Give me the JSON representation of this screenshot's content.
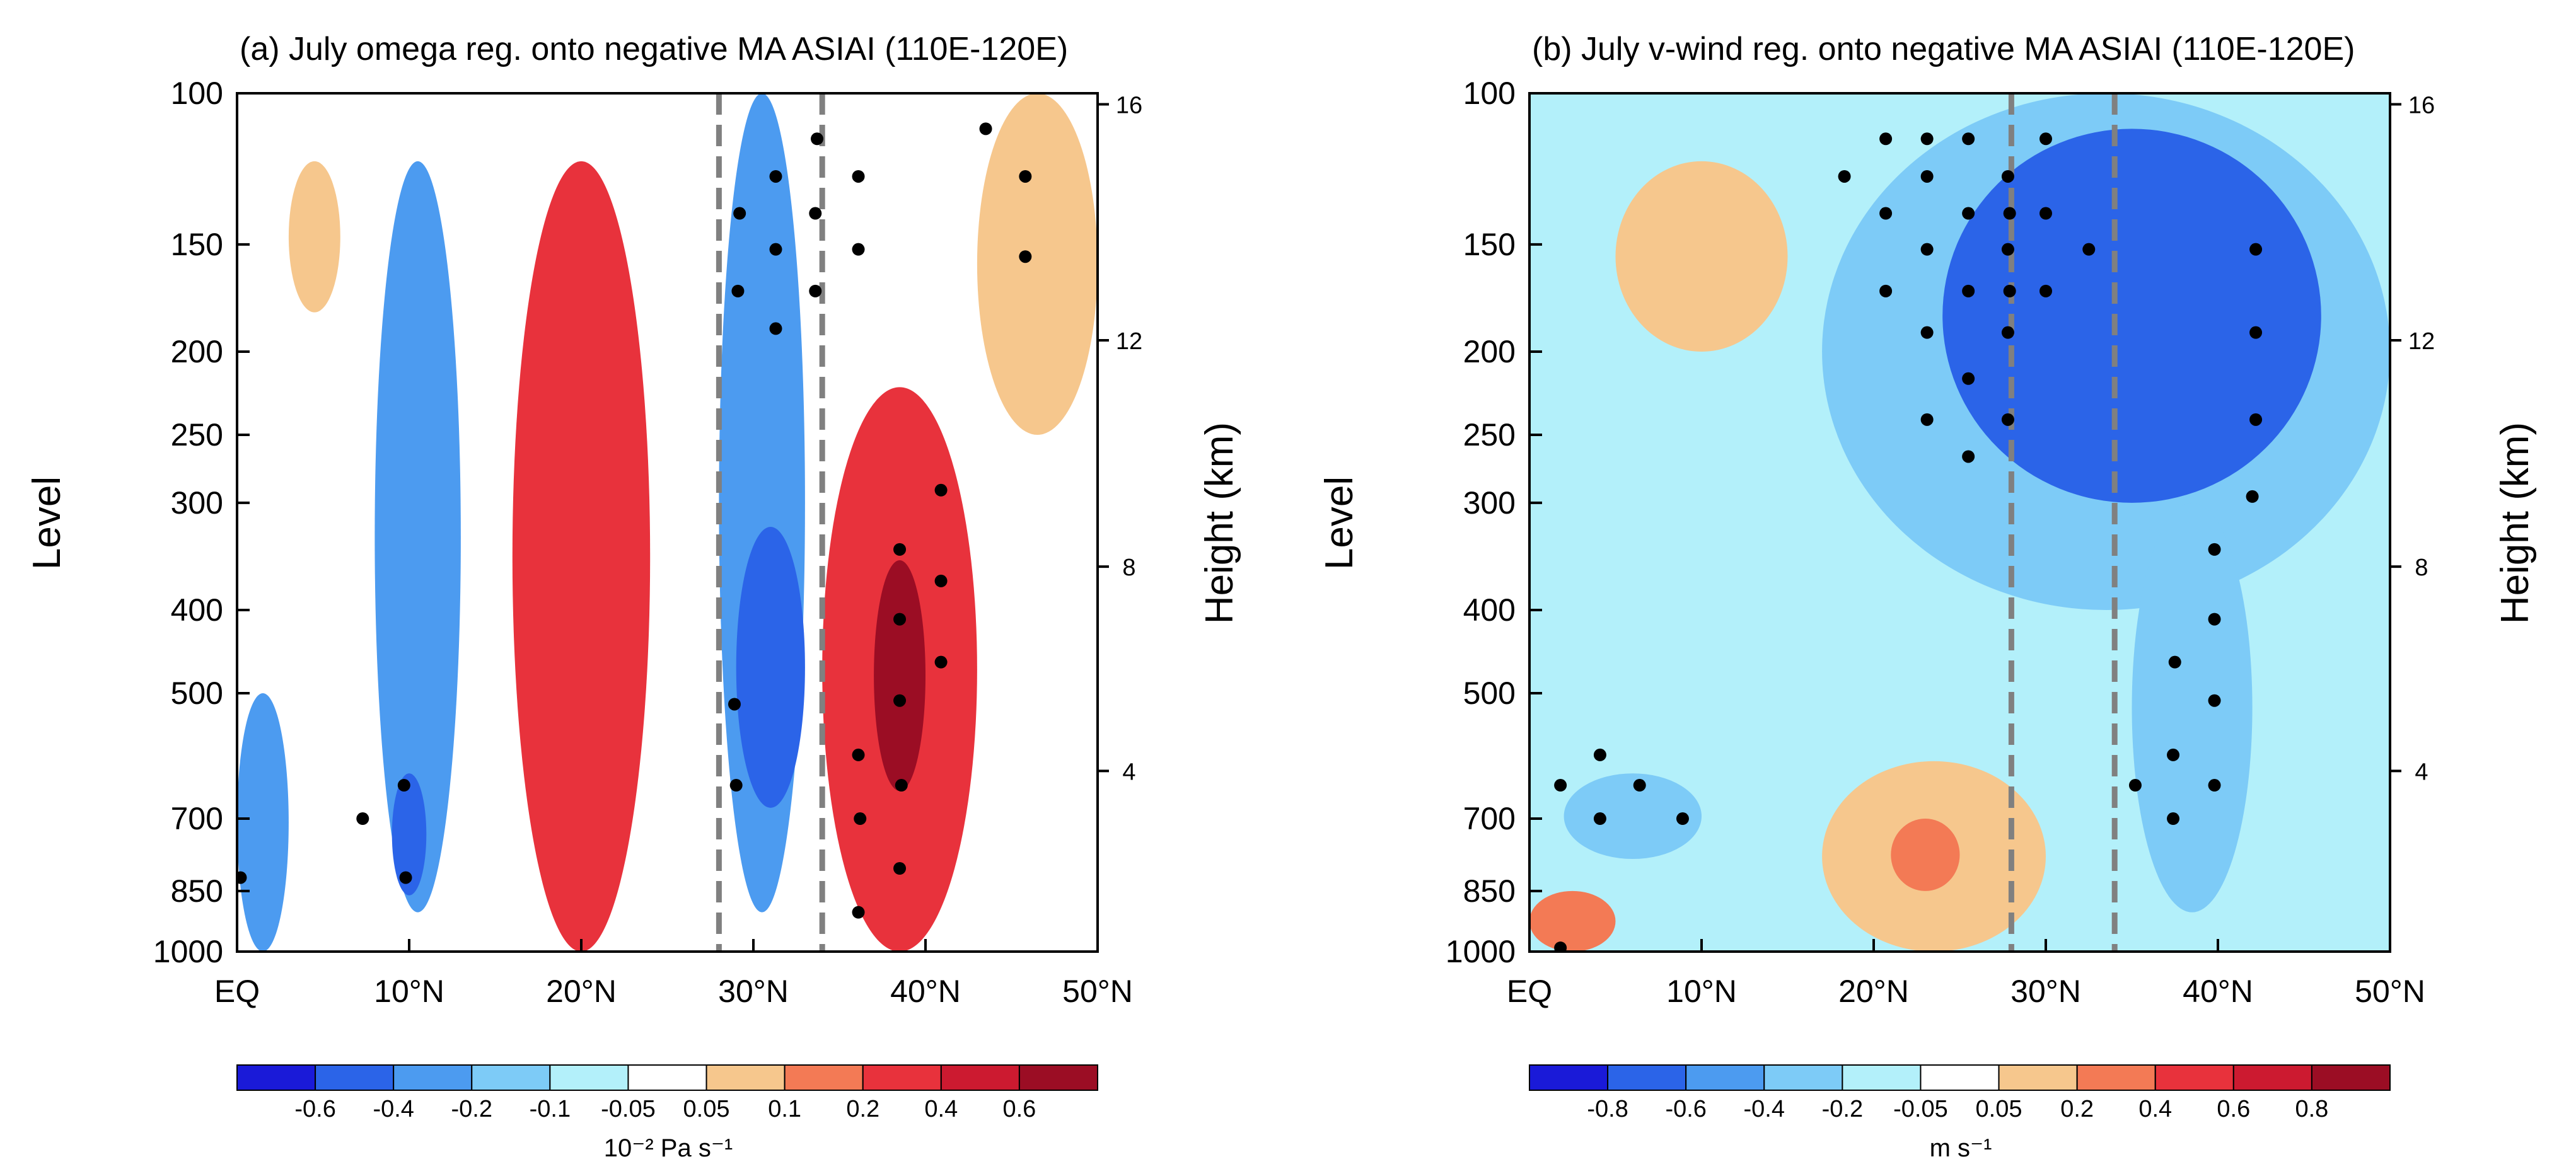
{
  "chart_data": [
    {
      "type": "heatmap",
      "panel": "a",
      "title": "(a) July omega reg. onto negative MA ASIAI (110E-120E)",
      "xlabel": "",
      "ylabel": "Level",
      "ylabel_right": "Height (km)",
      "x_ticks": [
        "EQ",
        "10°N",
        "20°N",
        "30°N",
        "40°N",
        "50°N"
      ],
      "x_range": [
        0,
        50
      ],
      "y_ticks": [
        "100",
        "150",
        "200",
        "250",
        "300",
        "400",
        "500",
        "700",
        "850",
        "1000"
      ],
      "y_levels": [
        100,
        150,
        200,
        250,
        300,
        400,
        500,
        700,
        850,
        1000
      ],
      "y_range": [
        100,
        1000
      ],
      "y_right_ticks": [
        "4",
        "8",
        "12",
        "16"
      ],
      "y_right_levels": [
        616,
        356,
        194,
        103
      ],
      "reference_lines_lat": [
        28,
        34
      ],
      "colorbar": {
        "levels": [
          "-0.6",
          "-0.4",
          "-0.2",
          "-0.1",
          "-0.05",
          "0.05",
          "0.1",
          "0.2",
          "0.4",
          "0.6"
        ],
        "colors": [
          "#1a1ad8",
          "#2b64e8",
          "#4c9bf0",
          "#7dcbf7",
          "#b3f0fa",
          "#ffffff",
          "#f6c78d",
          "#f37a55",
          "#e8323c",
          "#cc1a30",
          "#9b0d24"
        ],
        "unit": "10⁻² Pa s⁻¹"
      },
      "features": [
        {
          "lat": [
            0,
            3
          ],
          "p": [
            500,
            1000
          ],
          "value": -0.3
        },
        {
          "lat": [
            3,
            6
          ],
          "p": [
            120,
            180
          ],
          "value": 0.1
        },
        {
          "lat": [
            8,
            13
          ],
          "p": [
            120,
            900
          ],
          "value": -0.3
        },
        {
          "lat": [
            9,
            11
          ],
          "p": [
            620,
            860
          ],
          "value": -0.5
        },
        {
          "lat": [
            16,
            24
          ],
          "p": [
            120,
            1000
          ],
          "value": 0.3
        },
        {
          "lat": [
            28,
            33
          ],
          "p": [
            100,
            900
          ],
          "value": -0.2
        },
        {
          "lat": [
            29,
            33
          ],
          "p": [
            320,
            680
          ],
          "value": -0.5
        },
        {
          "lat": [
            34,
            43
          ],
          "p": [
            220,
            1000
          ],
          "value": 0.4
        },
        {
          "lat": [
            37,
            40
          ],
          "p": [
            350,
            650
          ],
          "value": 0.7
        },
        {
          "lat": [
            43,
            50
          ],
          "p": [
            100,
            250
          ],
          "value": 0.1
        }
      ],
      "significance_points": [
        {
          "lat": 0.2,
          "p": 820
        },
        {
          "lat": 7.3,
          "p": 700
        },
        {
          "lat": 9.7,
          "p": 640
        },
        {
          "lat": 9.8,
          "p": 820
        },
        {
          "lat": 28.9,
          "p": 515
        },
        {
          "lat": 29.0,
          "p": 640
        },
        {
          "lat": 29.2,
          "p": 138
        },
        {
          "lat": 29.1,
          "p": 170
        },
        {
          "lat": 31.3,
          "p": 125
        },
        {
          "lat": 31.3,
          "p": 152
        },
        {
          "lat": 31.3,
          "p": 188
        },
        {
          "lat": 33.7,
          "p": 113
        },
        {
          "lat": 33.6,
          "p": 138
        },
        {
          "lat": 33.6,
          "p": 170
        },
        {
          "lat": 36.1,
          "p": 125
        },
        {
          "lat": 36.1,
          "p": 152
        },
        {
          "lat": 36.1,
          "p": 590
        },
        {
          "lat": 36.2,
          "p": 700
        },
        {
          "lat": 36.1,
          "p": 900
        },
        {
          "lat": 38.5,
          "p": 340
        },
        {
          "lat": 38.5,
          "p": 410
        },
        {
          "lat": 38.5,
          "p": 510
        },
        {
          "lat": 38.6,
          "p": 640
        },
        {
          "lat": 38.5,
          "p": 800
        },
        {
          "lat": 40.9,
          "p": 290
        },
        {
          "lat": 40.9,
          "p": 370
        },
        {
          "lat": 40.9,
          "p": 460
        },
        {
          "lat": 43.5,
          "p": 110
        },
        {
          "lat": 45.8,
          "p": 125
        },
        {
          "lat": 45.8,
          "p": 155
        }
      ]
    },
    {
      "type": "heatmap",
      "panel": "b",
      "title": "(b) July v-wind reg. onto negative MA ASIAI (110E-120E)",
      "xlabel": "",
      "ylabel": "Level",
      "ylabel_right": "Height (km)",
      "x_ticks": [
        "EQ",
        "10°N",
        "20°N",
        "30°N",
        "40°N",
        "50°N"
      ],
      "x_range": [
        0,
        50
      ],
      "y_ticks": [
        "100",
        "150",
        "200",
        "250",
        "300",
        "400",
        "500",
        "700",
        "850",
        "1000"
      ],
      "y_levels": [
        100,
        150,
        200,
        250,
        300,
        400,
        500,
        700,
        850,
        1000
      ],
      "y_range": [
        100,
        1000
      ],
      "y_right_ticks": [
        "4",
        "8",
        "12",
        "16"
      ],
      "y_right_levels": [
        616,
        356,
        194,
        103
      ],
      "reference_lines_lat": [
        28,
        34
      ],
      "colorbar": {
        "levels": [
          "-0.8",
          "-0.6",
          "-0.4",
          "-0.2",
          "-0.05",
          "0.05",
          "0.2",
          "0.4",
          "0.6",
          "0.8"
        ],
        "colors": [
          "#1a1ad8",
          "#2b64e8",
          "#4c9bf0",
          "#7dcbf7",
          "#b3f0fa",
          "#ffffff",
          "#f6c78d",
          "#f37a55",
          "#e8323c",
          "#cc1a30",
          "#9b0d24"
        ],
        "unit": "m s⁻¹"
      },
      "features": [
        {
          "lat": [
            5,
            15
          ],
          "p": [
            120,
            200
          ],
          "value": 0.1
        },
        {
          "lat": [
            17,
            30
          ],
          "p": [
            600,
            1000
          ],
          "value": 0.1
        },
        {
          "lat": [
            21,
            25
          ],
          "p": [
            700,
            850
          ],
          "value": 0.3
        },
        {
          "lat": [
            0,
            5
          ],
          "p": [
            850,
            1000
          ],
          "value": 0.3
        },
        {
          "lat": [
            17,
            50
          ],
          "p": [
            100,
            400
          ],
          "value": -0.3
        },
        {
          "lat": [
            24,
            46
          ],
          "p": [
            110,
            300
          ],
          "value": -0.7
        },
        {
          "lat": [
            35,
            42
          ],
          "p": [
            300,
            900
          ],
          "value": -0.3
        },
        {
          "lat": [
            2,
            10
          ],
          "p": [
            620,
            780
          ],
          "value": -0.3
        }
      ],
      "significance_points": [
        {
          "lat": 20.7,
          "p": 113
        },
        {
          "lat": 23.1,
          "p": 113
        },
        {
          "lat": 25.5,
          "p": 113
        },
        {
          "lat": 30.0,
          "p": 113
        },
        {
          "lat": 18.3,
          "p": 125
        },
        {
          "lat": 23.1,
          "p": 125
        },
        {
          "lat": 27.8,
          "p": 125
        },
        {
          "lat": 20.7,
          "p": 138
        },
        {
          "lat": 25.5,
          "p": 138
        },
        {
          "lat": 27.9,
          "p": 138
        },
        {
          "lat": 30.0,
          "p": 138
        },
        {
          "lat": 23.1,
          "p": 152
        },
        {
          "lat": 27.8,
          "p": 152
        },
        {
          "lat": 32.5,
          "p": 152
        },
        {
          "lat": 42.2,
          "p": 152
        },
        {
          "lat": 20.7,
          "p": 170
        },
        {
          "lat": 25.5,
          "p": 170
        },
        {
          "lat": 27.9,
          "p": 170
        },
        {
          "lat": 30.0,
          "p": 170
        },
        {
          "lat": 23.1,
          "p": 190
        },
        {
          "lat": 27.8,
          "p": 190
        },
        {
          "lat": 42.2,
          "p": 190
        },
        {
          "lat": 25.5,
          "p": 215
        },
        {
          "lat": 23.1,
          "p": 240
        },
        {
          "lat": 27.8,
          "p": 240
        },
        {
          "lat": 42.2,
          "p": 240
        },
        {
          "lat": 25.5,
          "p": 265
        },
        {
          "lat": 42.0,
          "p": 295
        },
        {
          "lat": 39.8,
          "p": 340
        },
        {
          "lat": 39.8,
          "p": 410
        },
        {
          "lat": 37.5,
          "p": 460
        },
        {
          "lat": 39.8,
          "p": 510
        },
        {
          "lat": 4.1,
          "p": 590
        },
        {
          "lat": 37.4,
          "p": 590
        },
        {
          "lat": 1.8,
          "p": 640
        },
        {
          "lat": 6.4,
          "p": 640
        },
        {
          "lat": 35.2,
          "p": 640
        },
        {
          "lat": 39.8,
          "p": 640
        },
        {
          "lat": 4.1,
          "p": 700
        },
        {
          "lat": 8.9,
          "p": 700
        },
        {
          "lat": 37.4,
          "p": 700
        },
        {
          "lat": 1.8,
          "p": 990
        }
      ]
    }
  ]
}
